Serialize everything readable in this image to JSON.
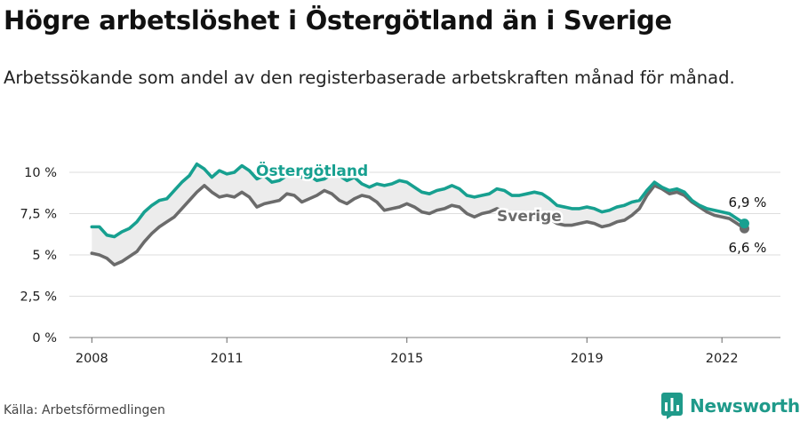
{
  "title": "Högre arbetslöshet i Östergötland än i Sverige",
  "subtitle": "Arbetssökande som andel av den registerbaserade arbetskraften månad för månad.",
  "source": "Källa: Arbetsförmedlingen",
  "brand": {
    "name": "Newsworthy",
    "icon": "newsworthy-logo-icon"
  },
  "colors": {
    "ostergotland": "#17a090",
    "sverige": "#6b6b6b",
    "fill": "#ececec",
    "grid": "#dddddd"
  },
  "chart_data": {
    "type": "line",
    "y_unit": "%",
    "ylim": [
      0,
      10
    ],
    "y_ticks": [
      0,
      2.5,
      5,
      7.5,
      10
    ],
    "y_tick_labels": [
      "0 %",
      "2,5 %",
      "5 %",
      "7,5 %",
      "10 %"
    ],
    "x_ticks": [
      "2008",
      "2011",
      "2015",
      "2019",
      "2022"
    ],
    "grid": true,
    "series": [
      {
        "name": "Östergötland",
        "color": "#17a090",
        "end_label": "6,9 %",
        "points": [
          [
            "2008-01",
            6.7
          ],
          [
            "2008-03",
            6.7
          ],
          [
            "2008-05",
            6.2
          ],
          [
            "2008-07",
            6.1
          ],
          [
            "2008-09",
            6.4
          ],
          [
            "2008-11",
            6.6
          ],
          [
            "2009-01",
            7.0
          ],
          [
            "2009-03",
            7.6
          ],
          [
            "2009-05",
            8.0
          ],
          [
            "2009-07",
            8.3
          ],
          [
            "2009-09",
            8.4
          ],
          [
            "2009-11",
            8.9
          ],
          [
            "2010-01",
            9.4
          ],
          [
            "2010-03",
            9.8
          ],
          [
            "2010-05",
            10.5
          ],
          [
            "2010-07",
            10.2
          ],
          [
            "2010-09",
            9.7
          ],
          [
            "2010-11",
            10.1
          ],
          [
            "2011-01",
            9.9
          ],
          [
            "2011-03",
            10.0
          ],
          [
            "2011-05",
            10.4
          ],
          [
            "2011-07",
            10.1
          ],
          [
            "2011-09",
            9.6
          ],
          [
            "2011-11",
            9.8
          ],
          [
            "2012-01",
            9.4
          ],
          [
            "2012-03",
            9.5
          ],
          [
            "2012-05",
            9.8
          ],
          [
            "2012-07",
            9.9
          ],
          [
            "2012-09",
            9.7
          ],
          [
            "2012-11",
            9.8
          ],
          [
            "2013-01",
            9.5
          ],
          [
            "2013-03",
            9.6
          ],
          [
            "2013-05",
            9.9
          ],
          [
            "2013-07",
            9.8
          ],
          [
            "2013-09",
            9.5
          ],
          [
            "2013-11",
            9.7
          ],
          [
            "2014-01",
            9.3
          ],
          [
            "2014-03",
            9.1
          ],
          [
            "2014-05",
            9.3
          ],
          [
            "2014-07",
            9.2
          ],
          [
            "2014-09",
            9.3
          ],
          [
            "2014-11",
            9.5
          ],
          [
            "2015-01",
            9.4
          ],
          [
            "2015-03",
            9.1
          ],
          [
            "2015-05",
            8.8
          ],
          [
            "2015-07",
            8.7
          ],
          [
            "2015-09",
            8.9
          ],
          [
            "2015-11",
            9.0
          ],
          [
            "2016-01",
            9.2
          ],
          [
            "2016-03",
            9.0
          ],
          [
            "2016-05",
            8.6
          ],
          [
            "2016-07",
            8.5
          ],
          [
            "2016-09",
            8.6
          ],
          [
            "2016-11",
            8.7
          ],
          [
            "2017-01",
            9.0
          ],
          [
            "2017-03",
            8.9
          ],
          [
            "2017-05",
            8.6
          ],
          [
            "2017-07",
            8.6
          ],
          [
            "2017-09",
            8.7
          ],
          [
            "2017-11",
            8.8
          ],
          [
            "2018-01",
            8.7
          ],
          [
            "2018-03",
            8.4
          ],
          [
            "2018-05",
            8.0
          ],
          [
            "2018-07",
            7.9
          ],
          [
            "2018-09",
            7.8
          ],
          [
            "2018-11",
            7.8
          ],
          [
            "2019-01",
            7.9
          ],
          [
            "2019-03",
            7.8
          ],
          [
            "2019-05",
            7.6
          ],
          [
            "2019-07",
            7.7
          ],
          [
            "2019-09",
            7.9
          ],
          [
            "2019-11",
            8.0
          ],
          [
            "2020-01",
            8.2
          ],
          [
            "2020-03",
            8.3
          ],
          [
            "2020-05",
            8.9
          ],
          [
            "2020-07",
            9.4
          ],
          [
            "2020-09",
            9.1
          ],
          [
            "2020-11",
            8.9
          ],
          [
            "2021-01",
            9.0
          ],
          [
            "2021-03",
            8.8
          ],
          [
            "2021-05",
            8.3
          ],
          [
            "2021-07",
            8.0
          ],
          [
            "2021-09",
            7.8
          ],
          [
            "2021-11",
            7.7
          ],
          [
            "2022-01",
            7.6
          ],
          [
            "2022-03",
            7.5
          ],
          [
            "2022-05",
            7.2
          ],
          [
            "2022-07",
            6.9
          ]
        ]
      },
      {
        "name": "Sverige",
        "color": "#6b6b6b",
        "end_label": "6,6 %",
        "points": [
          [
            "2008-01",
            5.1
          ],
          [
            "2008-03",
            5.0
          ],
          [
            "2008-05",
            4.8
          ],
          [
            "2008-07",
            4.4
          ],
          [
            "2008-09",
            4.6
          ],
          [
            "2008-11",
            4.9
          ],
          [
            "2009-01",
            5.2
          ],
          [
            "2009-03",
            5.8
          ],
          [
            "2009-05",
            6.3
          ],
          [
            "2009-07",
            6.7
          ],
          [
            "2009-09",
            7.0
          ],
          [
            "2009-11",
            7.3
          ],
          [
            "2010-01",
            7.8
          ],
          [
            "2010-03",
            8.3
          ],
          [
            "2010-05",
            8.8
          ],
          [
            "2010-07",
            9.2
          ],
          [
            "2010-09",
            8.8
          ],
          [
            "2010-11",
            8.5
          ],
          [
            "2011-01",
            8.6
          ],
          [
            "2011-03",
            8.5
          ],
          [
            "2011-05",
            8.8
          ],
          [
            "2011-07",
            8.5
          ],
          [
            "2011-09",
            7.9
          ],
          [
            "2011-11",
            8.1
          ],
          [
            "2012-01",
            8.2
          ],
          [
            "2012-03",
            8.3
          ],
          [
            "2012-05",
            8.7
          ],
          [
            "2012-07",
            8.6
          ],
          [
            "2012-09",
            8.2
          ],
          [
            "2012-11",
            8.4
          ],
          [
            "2013-01",
            8.6
          ],
          [
            "2013-03",
            8.9
          ],
          [
            "2013-05",
            8.7
          ],
          [
            "2013-07",
            8.3
          ],
          [
            "2013-09",
            8.1
          ],
          [
            "2013-11",
            8.4
          ],
          [
            "2014-01",
            8.6
          ],
          [
            "2014-03",
            8.5
          ],
          [
            "2014-05",
            8.2
          ],
          [
            "2014-07",
            7.7
          ],
          [
            "2014-09",
            7.8
          ],
          [
            "2014-11",
            7.9
          ],
          [
            "2015-01",
            8.1
          ],
          [
            "2015-03",
            7.9
          ],
          [
            "2015-05",
            7.6
          ],
          [
            "2015-07",
            7.5
          ],
          [
            "2015-09",
            7.7
          ],
          [
            "2015-11",
            7.8
          ],
          [
            "2016-01",
            8.0
          ],
          [
            "2016-03",
            7.9
          ],
          [
            "2016-05",
            7.5
          ],
          [
            "2016-07",
            7.3
          ],
          [
            "2016-09",
            7.5
          ],
          [
            "2016-11",
            7.6
          ],
          [
            "2017-01",
            7.8
          ],
          [
            "2017-03",
            7.6
          ],
          [
            "2017-05",
            7.3
          ],
          [
            "2017-07",
            7.2
          ],
          [
            "2017-09",
            7.2
          ],
          [
            "2017-11",
            7.3
          ],
          [
            "2018-01",
            7.4
          ],
          [
            "2018-03",
            7.2
          ],
          [
            "2018-05",
            6.9
          ],
          [
            "2018-07",
            6.8
          ],
          [
            "2018-09",
            6.8
          ],
          [
            "2018-11",
            6.9
          ],
          [
            "2019-01",
            7.0
          ],
          [
            "2019-03",
            6.9
          ],
          [
            "2019-05",
            6.7
          ],
          [
            "2019-07",
            6.8
          ],
          [
            "2019-09",
            7.0
          ],
          [
            "2019-11",
            7.1
          ],
          [
            "2020-01",
            7.4
          ],
          [
            "2020-03",
            7.8
          ],
          [
            "2020-05",
            8.6
          ],
          [
            "2020-07",
            9.2
          ],
          [
            "2020-09",
            9.0
          ],
          [
            "2020-11",
            8.7
          ],
          [
            "2021-01",
            8.8
          ],
          [
            "2021-03",
            8.6
          ],
          [
            "2021-05",
            8.2
          ],
          [
            "2021-07",
            7.9
          ],
          [
            "2021-09",
            7.6
          ],
          [
            "2021-11",
            7.4
          ],
          [
            "2022-01",
            7.3
          ],
          [
            "2022-03",
            7.2
          ],
          [
            "2022-05",
            6.9
          ],
          [
            "2022-07",
            6.6
          ]
        ]
      }
    ]
  }
}
